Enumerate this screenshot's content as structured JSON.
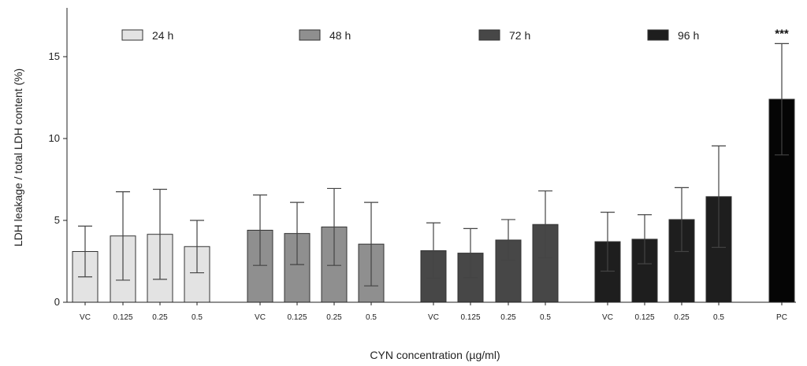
{
  "chart_data": {
    "type": "bar",
    "title": "",
    "xlabel": "CYN concentration (µg/ml)",
    "ylabel": "LDH leakage  / total LDH content (%)",
    "ylim": [
      0,
      18
    ],
    "yticks": [
      0,
      5,
      10,
      15
    ],
    "grid": false,
    "legend_position": "top",
    "groups": [
      {
        "name": "24 h",
        "color": "#e3e3e3",
        "categories": [
          "VC",
          "0.125",
          "0.25",
          "0.5"
        ],
        "values": [
          3.1,
          4.05,
          4.15,
          3.4
        ],
        "errors": [
          1.55,
          2.7,
          2.75,
          1.6
        ]
      },
      {
        "name": "48 h",
        "color": "#8f8f8f",
        "categories": [
          "VC",
          "0.125",
          "0.25",
          "0.5"
        ],
        "values": [
          4.4,
          4.2,
          4.6,
          3.55
        ],
        "errors": [
          2.15,
          1.9,
          2.35,
          2.55
        ]
      },
      {
        "name": "72 h",
        "color": "#474747",
        "categories": [
          "VC",
          "0.125",
          "0.25",
          "0.5"
        ],
        "values": [
          3.15,
          3.0,
          3.8,
          4.75
        ],
        "errors": [
          1.7,
          1.5,
          1.25,
          2.05
        ]
      },
      {
        "name": "96 h",
        "color": "#1e1e1e",
        "categories": [
          "VC",
          "0.125",
          "0.25",
          "0.5"
        ],
        "values": [
          3.7,
          3.85,
          5.05,
          6.45
        ],
        "errors": [
          1.8,
          1.5,
          1.95,
          3.1
        ]
      },
      {
        "name": "PC",
        "color": "#050505",
        "categories": [
          "PC"
        ],
        "values": [
          12.4
        ],
        "errors": [
          3.4
        ],
        "annotation": "***"
      }
    ]
  }
}
